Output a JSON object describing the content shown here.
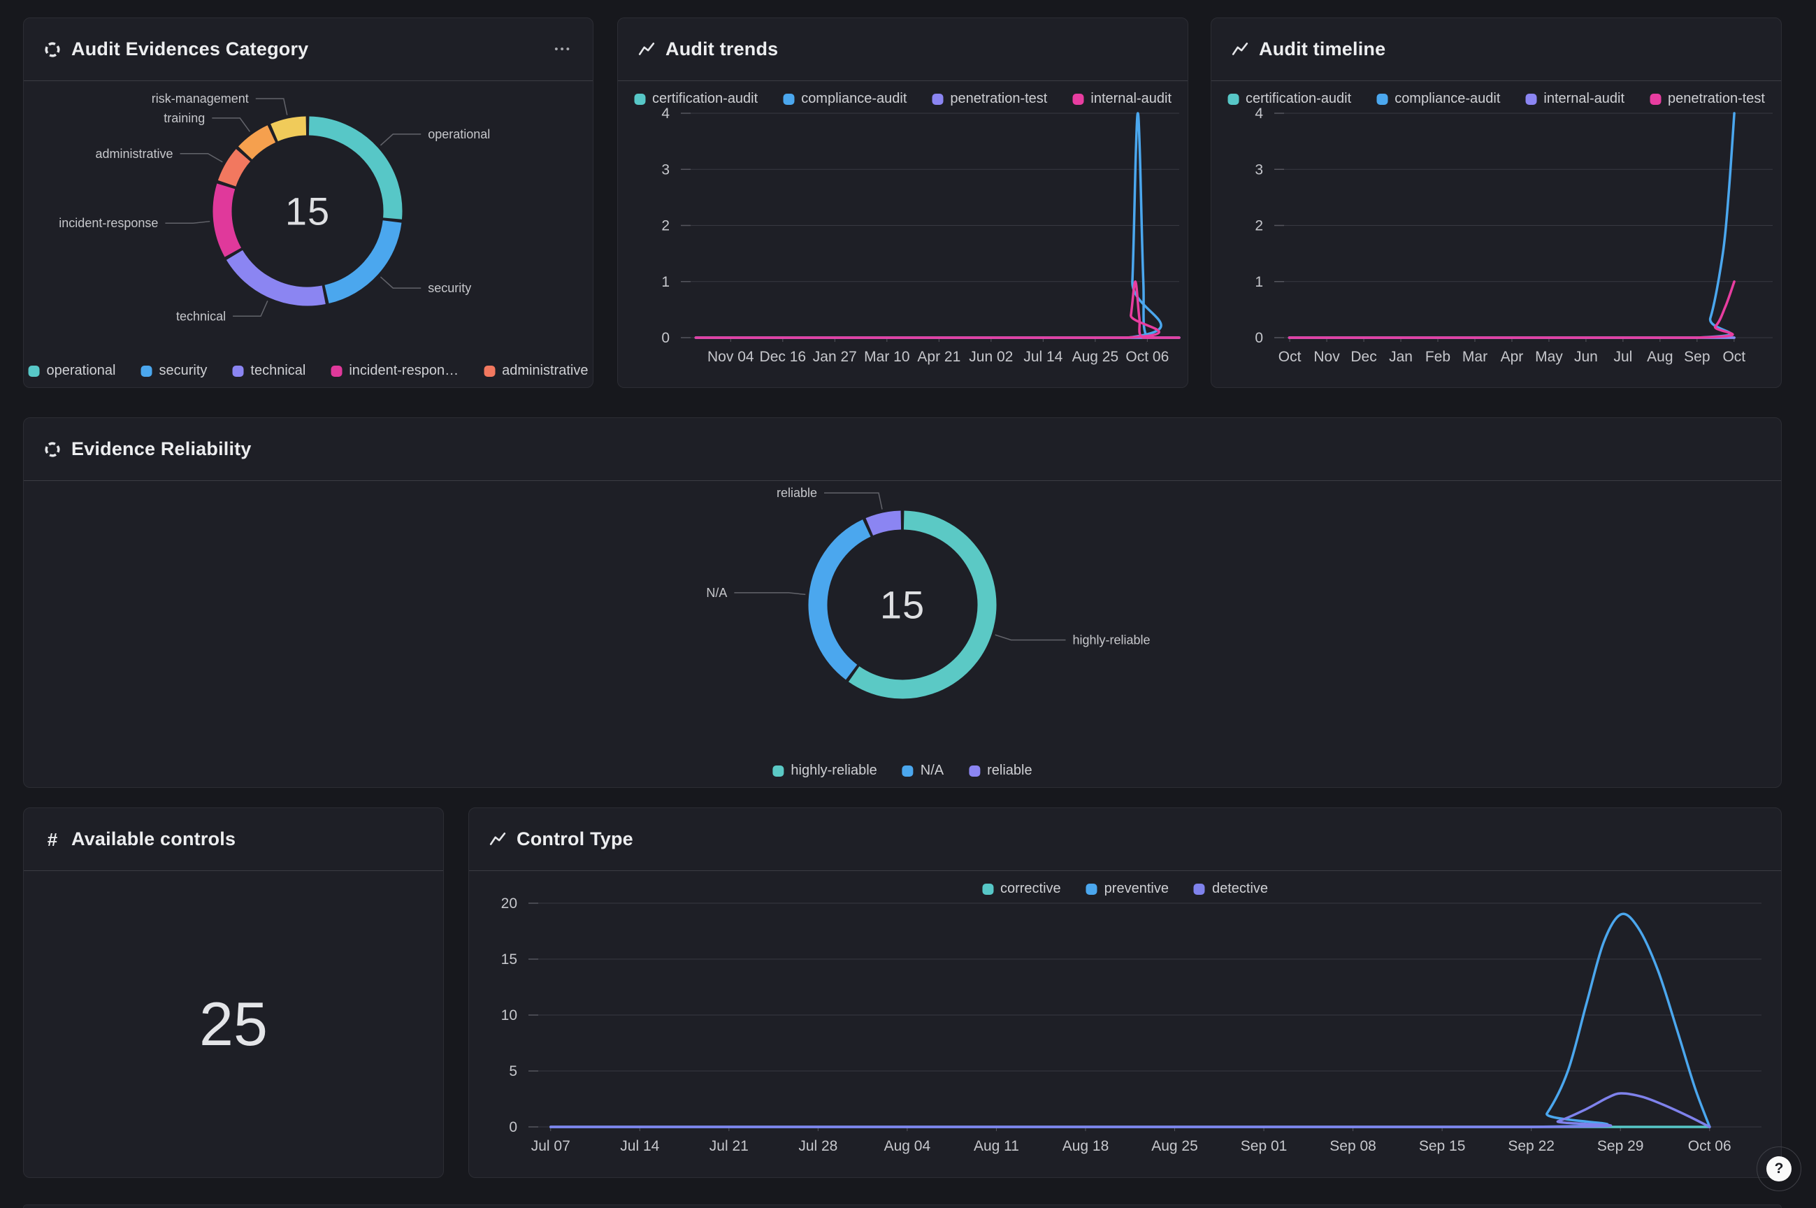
{
  "cards": [
    {
      "title": "Audit Evidences Category",
      "menu_icon_label": "•••"
    },
    {
      "title": "Audit trends"
    },
    {
      "title": "Audit timeline"
    },
    {
      "title": "Evidence Reliability"
    },
    {
      "title": "Available controls",
      "icon_glyph": "#"
    },
    {
      "title": "Control Type"
    }
  ],
  "help_button": {
    "label": "?"
  },
  "chart_data": [
    {
      "type": "pie",
      "title": "Audit Evidences Category",
      "total": 15,
      "center_label": "15",
      "segments": [
        {
          "label": "operational",
          "value": 4,
          "color": "#57C7C7"
        },
        {
          "label": "security",
          "value": 3,
          "color": "#4BA7EE"
        },
        {
          "label": "technical",
          "value": 3,
          "color": "#8B85F2"
        },
        {
          "label": "incident-response",
          "value": 2,
          "color": "#E0399B"
        },
        {
          "label": "administrative",
          "value": 1,
          "color": "#F2785F"
        },
        {
          "label": "training",
          "value": 1,
          "color": "#F5A04E"
        },
        {
          "label": "risk-management",
          "value": 1,
          "color": "#F0CB5A"
        }
      ],
      "legend": [
        {
          "label": "operational",
          "color": "#57C7C7"
        },
        {
          "label": "security",
          "color": "#4BA7EE"
        },
        {
          "label": "technical",
          "color": "#8B85F2"
        },
        {
          "label": "incident-respon…",
          "color": "#E0399B"
        },
        {
          "label": "administrative",
          "color": "#F2785F"
        }
      ],
      "legend_position": "bottom-center"
    },
    {
      "type": "line",
      "title": "Audit trends",
      "ylim": [
        0,
        4
      ],
      "yticks": [
        0,
        1,
        2,
        3,
        4
      ],
      "xticks": [
        "Nov 04",
        "Dec 16",
        "Jan 27",
        "Mar 10",
        "Apr 21",
        "Jun 02",
        "Jul 14",
        "Aug 25",
        "Oct 06"
      ],
      "grid": true,
      "legend_position": "top-center",
      "legend": [
        {
          "label": "certification-audit",
          "color": "#57C7C7"
        },
        {
          "label": "compliance-audit",
          "color": "#4BA7EE"
        },
        {
          "label": "penetration-test",
          "color": "#8B85F2"
        },
        {
          "label": "internal-audit",
          "color": "#E83DA0"
        }
      ],
      "series": [
        {
          "name": "certification-audit",
          "color": "#57C7C7",
          "points": [
            [
              0.03,
              0
            ],
            [
              1,
              0
            ]
          ]
        },
        {
          "name": "compliance-audit",
          "color": "#4BA7EE",
          "points": [
            [
              0.03,
              0
            ],
            [
              0.897,
              0
            ],
            [
              0.906,
              1
            ],
            [
              0.913,
              3.3
            ],
            [
              0.917,
              4
            ],
            [
              0.921,
              3.3
            ],
            [
              0.928,
              1
            ],
            [
              0.936,
              0
            ],
            [
              1,
              0
            ]
          ]
        },
        {
          "name": "penetration-test",
          "color": "#8B85F2",
          "points": [
            [
              0.03,
              0
            ],
            [
              1,
              0
            ]
          ]
        },
        {
          "name": "internal-audit",
          "color": "#E83DA0",
          "points": [
            [
              0.03,
              0
            ],
            [
              0.893,
              0
            ],
            [
              0.903,
              0.4
            ],
            [
              0.912,
              1
            ],
            [
              0.92,
              0.35
            ],
            [
              0.928,
              0
            ],
            [
              1,
              0
            ]
          ]
        }
      ]
    },
    {
      "type": "line",
      "title": "Audit timeline",
      "ylim": [
        0,
        4
      ],
      "yticks": [
        0,
        1,
        2,
        3,
        4
      ],
      "xticks": [
        "Oct",
        "Nov",
        "Dec",
        "Jan",
        "Feb",
        "Mar",
        "Apr",
        "May",
        "Jun",
        "Jul",
        "Aug",
        "Sep",
        "Oct"
      ],
      "grid": true,
      "legend_position": "top-center",
      "legend": [
        {
          "label": "certification-audit",
          "color": "#57C7C7"
        },
        {
          "label": "compliance-audit",
          "color": "#4BA7EE"
        },
        {
          "label": "internal-audit",
          "color": "#8B85F2"
        },
        {
          "label": "penetration-test",
          "color": "#E83DA0"
        }
      ],
      "series": [
        {
          "name": "certification-audit",
          "color": "#57C7C7",
          "points": [
            [
              0.03,
              0
            ],
            [
              0.923,
              0
            ]
          ]
        },
        {
          "name": "compliance-audit",
          "color": "#4BA7EE",
          "points": [
            [
              0.03,
              0
            ],
            [
              0.848,
              0
            ],
            [
              0.875,
              0.35
            ],
            [
              0.9,
              1.5
            ],
            [
              0.912,
              2.6
            ],
            [
              0.923,
              4
            ]
          ]
        },
        {
          "name": "internal-audit",
          "color": "#8B85F2",
          "points": [
            [
              0.03,
              0
            ],
            [
              0.923,
              0
            ]
          ]
        },
        {
          "name": "penetration-test",
          "color": "#E83DA0",
          "points": [
            [
              0.03,
              0
            ],
            [
              0.848,
              0
            ],
            [
              0.885,
              0.2
            ],
            [
              0.905,
              0.55
            ],
            [
              0.923,
              1
            ]
          ]
        }
      ]
    },
    {
      "type": "pie",
      "title": "Evidence Reliability",
      "total": 15,
      "center_label": "15",
      "segments": [
        {
          "label": "highly-reliable",
          "value": 9,
          "color": "#5BC9C5"
        },
        {
          "label": "N/A",
          "value": 5,
          "color": "#4BA7EE"
        },
        {
          "label": "reliable",
          "value": 1,
          "color": "#8B85F2"
        }
      ],
      "legend": [
        {
          "label": "highly-reliable",
          "color": "#5BC9C5"
        },
        {
          "label": "N/A",
          "color": "#4BA7EE"
        },
        {
          "label": "reliable",
          "color": "#8B85F2"
        }
      ],
      "legend_position": "bottom-center"
    },
    {
      "type": "stat",
      "title": "Available controls",
      "value": "25"
    },
    {
      "type": "line",
      "title": "Control Type",
      "ylim": [
        0,
        20
      ],
      "yticks": [
        0,
        5,
        10,
        15,
        20
      ],
      "xticks": [
        "Jul 07",
        "Jul 14",
        "Jul 21",
        "Jul 28",
        "Aug 04",
        "Aug 11",
        "Aug 18",
        "Aug 25",
        "Sep 01",
        "Sep 08",
        "Sep 15",
        "Sep 22",
        "Sep 29",
        "Oct 06"
      ],
      "grid": true,
      "legend_position": "top-center",
      "legend": [
        {
          "label": "corrective",
          "color": "#57C7C7"
        },
        {
          "label": "preventive",
          "color": "#4BA7EE"
        },
        {
          "label": "detective",
          "color": "#7F82EC"
        }
      ],
      "series": [
        {
          "name": "corrective",
          "color": "#57C7C7",
          "points": [
            [
              0.018,
              0
            ],
            [
              0.958,
              0
            ]
          ]
        },
        {
          "name": "preventive",
          "color": "#4BA7EE",
          "points": [
            [
              0.018,
              0
            ],
            [
              0.813,
              0
            ],
            [
              0.826,
              1.2
            ],
            [
              0.843,
              5
            ],
            [
              0.858,
              11
            ],
            [
              0.872,
              16.5
            ],
            [
              0.886,
              19
            ],
            [
              0.9,
              17.8
            ],
            [
              0.916,
              14
            ],
            [
              0.932,
              8.5
            ],
            [
              0.946,
              3.5
            ],
            [
              0.958,
              0
            ]
          ]
        },
        {
          "name": "detective",
          "color": "#7F82EC",
          "points": [
            [
              0.018,
              0
            ],
            [
              0.813,
              0
            ],
            [
              0.835,
              0.5
            ],
            [
              0.858,
              1.6
            ],
            [
              0.875,
              2.6
            ],
            [
              0.886,
              3
            ],
            [
              0.903,
              2.7
            ],
            [
              0.92,
              2
            ],
            [
              0.94,
              1
            ],
            [
              0.958,
              0
            ]
          ]
        }
      ]
    }
  ]
}
